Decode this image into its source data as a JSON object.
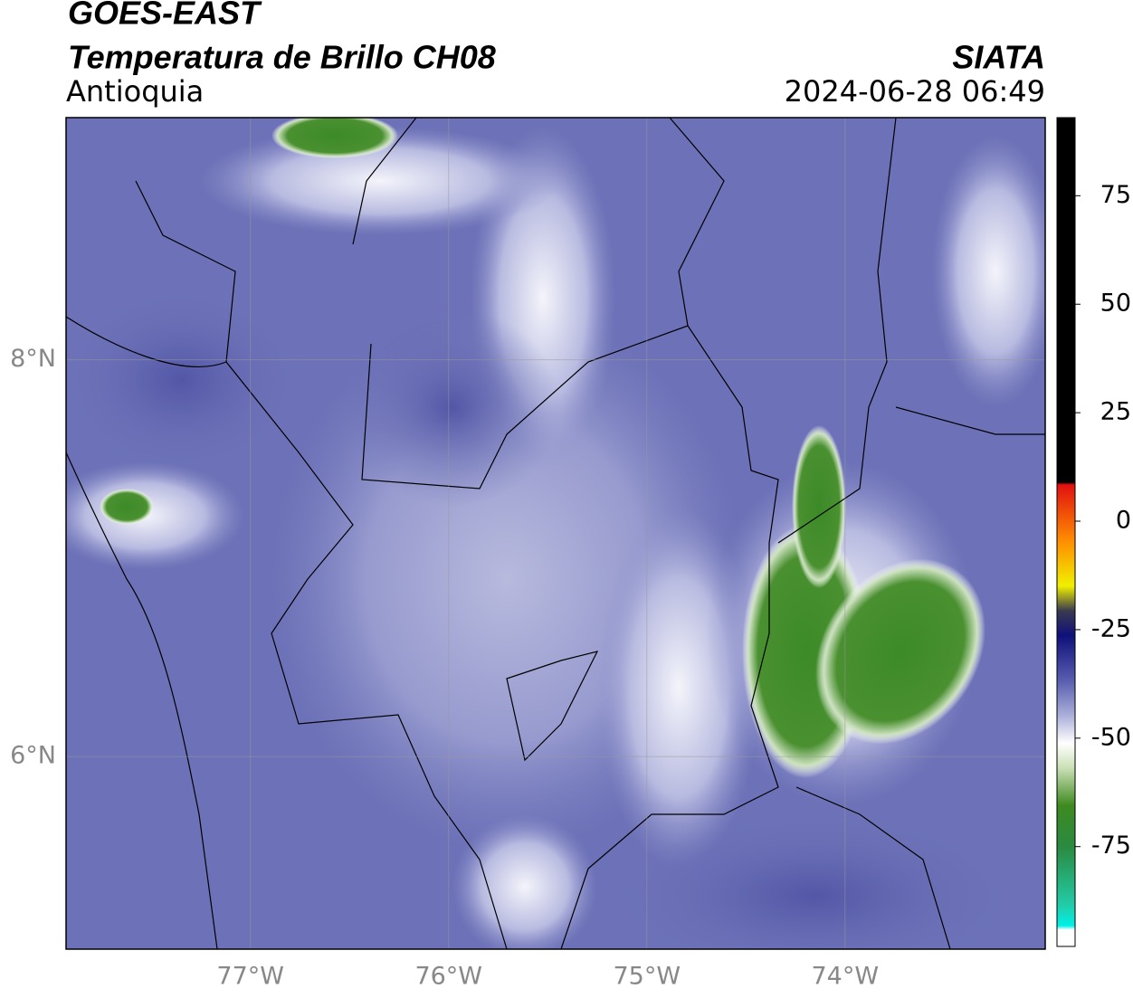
{
  "header": {
    "source": "GOES-EAST",
    "title": "Temperatura de Brillo CH08",
    "brand": "SIATA",
    "region": "Antioquia",
    "timestamp": "2024-06-28 06:49"
  },
  "map": {
    "xlim": [
      -77.93,
      -72.99
    ],
    "ylim": [
      5.03,
      9.22
    ],
    "xticks": [
      {
        "value": -77,
        "label": "77°W"
      },
      {
        "value": -76,
        "label": "76°W"
      },
      {
        "value": -75,
        "label": "75°W"
      },
      {
        "value": -74,
        "label": "74°W"
      }
    ],
    "yticks": [
      {
        "value": 8,
        "label": "8°N"
      },
      {
        "value": 6,
        "label": "6°N"
      }
    ],
    "grid": true
  },
  "colorbar": {
    "range": [
      -98,
      93
    ],
    "ticks": [
      75,
      50,
      25,
      0,
      -25,
      -50,
      -75
    ]
  }
}
